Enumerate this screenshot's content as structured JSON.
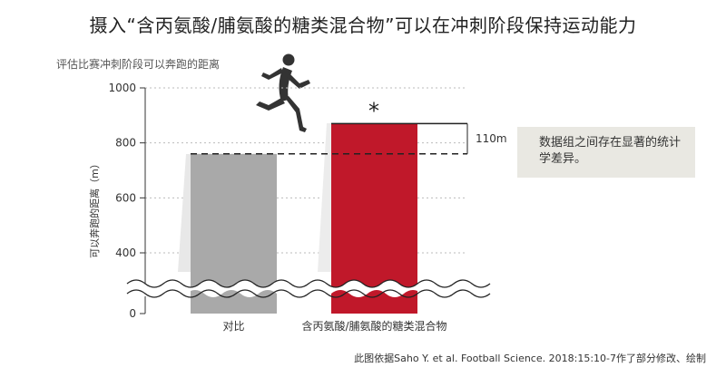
{
  "page": {
    "title": "摄入“含丙氨酸/脯氨酸的糖类混合物”可以在冲刺阶段保持运动能力",
    "source": "此图依据Saho Y. et al. Football Science. 2018:15:10-7作了部分修改、绘制",
    "note": "数据组之间存在显著的统计学差异。"
  },
  "chart_data": {
    "type": "bar",
    "title": "",
    "subtitle": "评估比赛冲刺阶段可以奔跑的距离",
    "ylabel": "可以奔跑的距离（m）",
    "xlabel": "",
    "categories": [
      "对比",
      "含丙氨酸/脯氨酸的糖类混合物"
    ],
    "values": [
      760,
      870
    ],
    "colors": [
      "#a9a9a9",
      "#c0182a"
    ],
    "yticks": [
      0,
      400,
      600,
      800,
      1000
    ],
    "ylim": [
      0,
      1000
    ],
    "axis_break": true,
    "grid": true,
    "significance_marker": "*",
    "difference_label": "110m",
    "icon": "running-man-icon"
  }
}
